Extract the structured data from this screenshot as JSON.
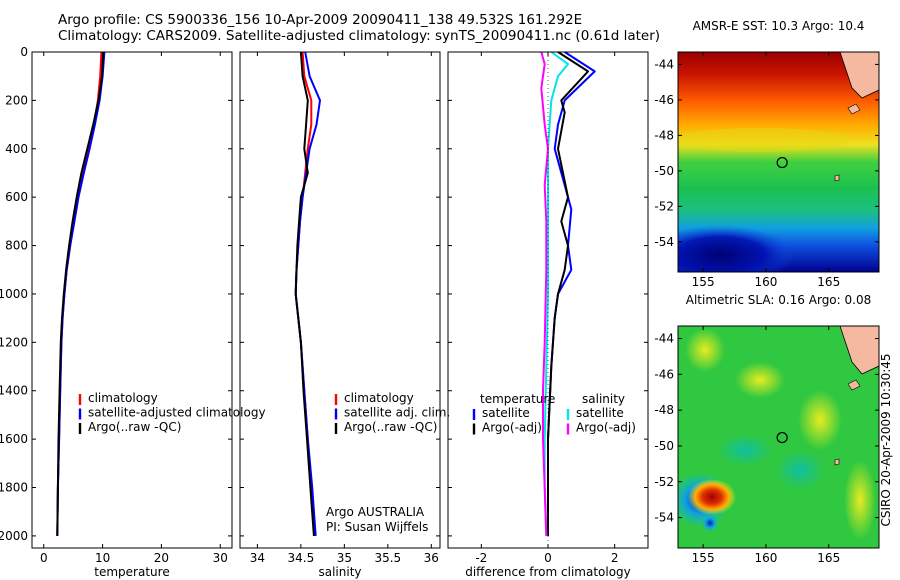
{
  "header": {
    "line1": "Argo profile: CS 5900336_156 10-Apr-2009 20090411_138 49.532S 161.292E",
    "line2": "Climatology: CARS2009. Satellite-adjusted climatology: synTS_20090411.nc (0.61d later)"
  },
  "side_label": "CSIRO 20-Apr-2009 10:30:45",
  "colors": {
    "red": "#ff0000",
    "blue": "#0000ff",
    "black": "#000000",
    "cyan": "#00e5e5",
    "magenta": "#ff00ff"
  },
  "chart_data": [
    {
      "id": "temperature",
      "type": "line",
      "xlabel": "temperature",
      "xlim": [
        -2,
        32
      ],
      "ylim": [
        0,
        2050
      ],
      "y_reversed": true,
      "xticks": [
        0,
        10,
        20,
        30
      ],
      "yticks": [
        0,
        200,
        400,
        600,
        800,
        1000,
        1200,
        1400,
        1600,
        1800,
        2000
      ],
      "legend": [
        "climatology",
        "satellite-adjusted climatology",
        "Argo(..raw -QC)"
      ],
      "annotation": "",
      "series": [
        {
          "name": "climatology",
          "color": "red",
          "points": [
            [
              9.8,
              0
            ],
            [
              9.6,
              100
            ],
            [
              9.2,
              200
            ],
            [
              8.5,
              300
            ],
            [
              7.6,
              400
            ],
            [
              6.6,
              500
            ],
            [
              5.8,
              600
            ],
            [
              5.1,
              700
            ],
            [
              4.5,
              800
            ],
            [
              3.9,
              900
            ],
            [
              3.5,
              1000
            ],
            [
              3.2,
              1100
            ],
            [
              3.0,
              1200
            ],
            [
              2.8,
              1400
            ],
            [
              2.6,
              1600
            ],
            [
              2.4,
              1800
            ],
            [
              2.3,
              2000
            ]
          ]
        },
        {
          "name": "satellite-adjusted climatology",
          "color": "blue",
          "points": [
            [
              10.3,
              0
            ],
            [
              10.0,
              100
            ],
            [
              9.5,
              200
            ],
            [
              8.7,
              300
            ],
            [
              7.8,
              400
            ],
            [
              6.8,
              500
            ],
            [
              5.9,
              600
            ],
            [
              5.2,
              700
            ],
            [
              4.5,
              800
            ],
            [
              3.9,
              900
            ],
            [
              3.5,
              1000
            ],
            [
              3.2,
              1100
            ],
            [
              3.0,
              1200
            ],
            [
              2.8,
              1400
            ],
            [
              2.6,
              1600
            ],
            [
              2.4,
              1800
            ],
            [
              2.3,
              2000
            ]
          ]
        },
        {
          "name": "Argo(..raw -QC)",
          "color": "black",
          "points": [
            [
              10.1,
              0
            ],
            [
              9.9,
              100
            ],
            [
              9.3,
              200
            ],
            [
              8.4,
              300
            ],
            [
              7.4,
              400
            ],
            [
              6.4,
              500
            ],
            [
              5.6,
              600
            ],
            [
              4.9,
              700
            ],
            [
              4.3,
              800
            ],
            [
              3.8,
              900
            ],
            [
              3.4,
              1000
            ],
            [
              3.1,
              1100
            ],
            [
              2.9,
              1200
            ],
            [
              2.7,
              1400
            ],
            [
              2.5,
              1600
            ],
            [
              2.4,
              1800
            ],
            [
              2.3,
              2000
            ]
          ]
        }
      ]
    },
    {
      "id": "salinity",
      "type": "line",
      "xlabel": "salinity",
      "xlim": [
        33.8,
        36.1
      ],
      "ylim": [
        0,
        2050
      ],
      "y_reversed": true,
      "xticks": [
        34,
        34.5,
        35,
        35.5,
        36
      ],
      "yticks": [
        0,
        200,
        400,
        600,
        800,
        1000,
        1200,
        1400,
        1600,
        1800,
        2000
      ],
      "legend": [
        "climatology",
        "satellite adj. clim.",
        "Argo(..raw -QC)"
      ],
      "annotation": [
        "Argo AUSTRALIA",
        "PI: Susan Wijffels"
      ],
      "series": [
        {
          "name": "climatology",
          "color": "red",
          "points": [
            [
              34.52,
              0
            ],
            [
              34.54,
              100
            ],
            [
              34.62,
              200
            ],
            [
              34.62,
              300
            ],
            [
              34.58,
              400
            ],
            [
              34.55,
              500
            ],
            [
              34.52,
              600
            ],
            [
              34.49,
              700
            ],
            [
              34.47,
              800
            ],
            [
              34.45,
              900
            ],
            [
              34.44,
              1000
            ],
            [
              34.47,
              1100
            ],
            [
              34.5,
              1200
            ],
            [
              34.54,
              1400
            ],
            [
              34.58,
              1600
            ],
            [
              34.62,
              1800
            ],
            [
              34.66,
              2000
            ]
          ]
        },
        {
          "name": "satellite adj. clim.",
          "color": "blue",
          "points": [
            [
              34.55,
              0
            ],
            [
              34.6,
              100
            ],
            [
              34.72,
              200
            ],
            [
              34.68,
              300
            ],
            [
              34.6,
              400
            ],
            [
              34.56,
              500
            ],
            [
              34.52,
              600
            ],
            [
              34.49,
              700
            ],
            [
              34.47,
              800
            ],
            [
              34.45,
              900
            ],
            [
              34.44,
              1000
            ],
            [
              34.47,
              1100
            ],
            [
              34.5,
              1200
            ],
            [
              34.54,
              1400
            ],
            [
              34.58,
              1600
            ],
            [
              34.63,
              1800
            ],
            [
              34.67,
              2000
            ]
          ]
        },
        {
          "name": "Argo(..raw -QC)",
          "color": "black",
          "points": [
            [
              34.5,
              0
            ],
            [
              34.52,
              100
            ],
            [
              34.58,
              200
            ],
            [
              34.56,
              300
            ],
            [
              34.54,
              400
            ],
            [
              34.58,
              500
            ],
            [
              34.5,
              600
            ],
            [
              34.48,
              700
            ],
            [
              34.46,
              800
            ],
            [
              34.45,
              900
            ],
            [
              34.44,
              1000
            ],
            [
              34.47,
              1100
            ],
            [
              34.5,
              1200
            ],
            [
              34.53,
              1400
            ],
            [
              34.57,
              1600
            ],
            [
              34.61,
              1800
            ],
            [
              34.65,
              2000
            ]
          ]
        }
      ]
    },
    {
      "id": "difference",
      "type": "line",
      "xlabel": "difference from climatology",
      "xlim": [
        -3,
        3
      ],
      "ylim": [
        0,
        2050
      ],
      "y_reversed": true,
      "xticks": [
        -2,
        0,
        2
      ],
      "yticks": [
        0,
        200,
        400,
        600,
        800,
        1000,
        1200,
        1400,
        1600,
        1800,
        2000
      ],
      "legend_headers": [
        "temperature",
        "salinity"
      ],
      "legend": [
        "satellite",
        "Argo(-adj)",
        "satellite",
        "Argo(-adj)"
      ],
      "series": [
        {
          "name": "satellite",
          "group": "temperature",
          "color": "blue",
          "points": [
            [
              0.5,
              0
            ],
            [
              1.4,
              80
            ],
            [
              0.5,
              200
            ],
            [
              0.3,
              300
            ],
            [
              0.2,
              400
            ],
            [
              0.5,
              550
            ],
            [
              0.7,
              650
            ],
            [
              0.6,
              800
            ],
            [
              0.7,
              900
            ],
            [
              0.3,
              1000
            ],
            [
              0.2,
              1100
            ],
            [
              0.1,
              1300
            ],
            [
              0.0,
              1600
            ],
            [
              0.0,
              1800
            ],
            [
              0.0,
              2000
            ]
          ]
        },
        {
          "name": "Argo(-adj)",
          "group": "temperature",
          "color": "black",
          "points": [
            [
              0.3,
              0
            ],
            [
              1.2,
              80
            ],
            [
              0.4,
              200
            ],
            [
              0.5,
              250
            ],
            [
              0.3,
              400
            ],
            [
              0.6,
              600
            ],
            [
              0.4,
              700
            ],
            [
              0.6,
              800
            ],
            [
              0.5,
              900
            ],
            [
              0.3,
              1000
            ],
            [
              0.2,
              1100
            ],
            [
              0.1,
              1300
            ],
            [
              0.0,
              1600
            ],
            [
              0.0,
              1800
            ],
            [
              0.0,
              2000
            ]
          ]
        },
        {
          "name": "satellite",
          "group": "salinity",
          "color": "cyan",
          "points": [
            [
              0.1,
              0
            ],
            [
              0.6,
              50
            ],
            [
              0.3,
              100
            ],
            [
              0.1,
              200
            ],
            [
              0.0,
              400
            ],
            [
              0.0,
              700
            ],
            [
              0.0,
              1000
            ],
            [
              -0.05,
              1300
            ],
            [
              -0.1,
              1600
            ],
            [
              -0.1,
              1800
            ],
            [
              -0.05,
              2000
            ]
          ]
        },
        {
          "name": "Argo(-adj)",
          "group": "salinity",
          "color": "magenta",
          "points": [
            [
              -0.2,
              0
            ],
            [
              -0.1,
              50
            ],
            [
              -0.2,
              150
            ],
            [
              -0.1,
              300
            ],
            [
              0.0,
              400
            ],
            [
              -0.1,
              550
            ],
            [
              -0.05,
              700
            ],
            [
              -0.05,
              900
            ],
            [
              -0.1,
              1200
            ],
            [
              -0.15,
              1400
            ],
            [
              -0.15,
              1600
            ],
            [
              -0.1,
              1800
            ],
            [
              -0.05,
              2000
            ]
          ]
        }
      ]
    },
    {
      "id": "sst_map",
      "type": "heatmap",
      "title": "AMSR-E SST: 10.3 Argo: 10.4",
      "xlim": [
        153,
        169
      ],
      "ylim": [
        -55.7,
        -43.3
      ],
      "xticks": [
        155,
        160,
        165
      ],
      "yticks": [
        -44,
        -46,
        -48,
        -50,
        -52,
        -54
      ],
      "marker": {
        "lon": 161.292,
        "lat": -49.532
      }
    },
    {
      "id": "sla_map",
      "type": "heatmap",
      "title": "Altimetric SLA: 0.16 Argo: 0.08",
      "xlim": [
        153,
        169
      ],
      "ylim": [
        -55.7,
        -43.3
      ],
      "xticks": [
        155,
        160,
        165
      ],
      "yticks": [
        -44,
        -46,
        -48,
        -50,
        -52,
        -54
      ],
      "marker": {
        "lon": 161.292,
        "lat": -49.532
      }
    }
  ]
}
